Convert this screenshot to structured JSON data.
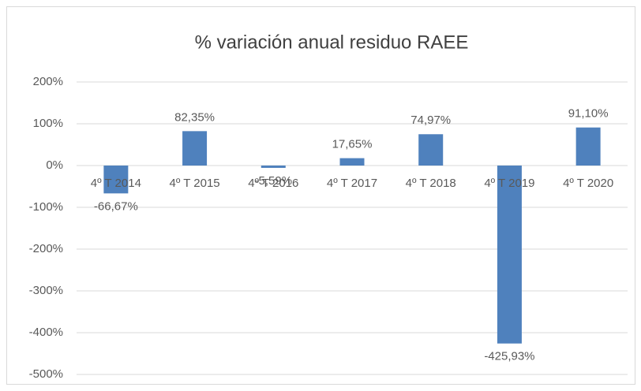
{
  "chart_data": {
    "type": "bar",
    "title": "% variación anual residuo RAEE",
    "categories": [
      "4º T 2014",
      "4º T 2015",
      "4º T 2016",
      "4º T 2017",
      "4º T 2018",
      "4º T 2019",
      "4º T 2020"
    ],
    "values": [
      -66.67,
      82.35,
      -5.59,
      17.65,
      74.97,
      -425.93,
      91.1
    ],
    "value_labels": [
      "-66,67%",
      "82,35%",
      "-5,59%",
      "17,65%",
      "74,97%",
      "-425,93%",
      "91,10%"
    ],
    "color": "#4f81bd",
    "ylim": [
      -500,
      200
    ],
    "yticks": [
      {
        "value": -500,
        "label": "-500%"
      },
      {
        "value": -400,
        "label": "-400%"
      },
      {
        "value": -300,
        "label": "-300%"
      },
      {
        "value": -200,
        "label": "-200%"
      },
      {
        "value": -100,
        "label": "-100%"
      },
      {
        "value": 0,
        "label": "0%"
      },
      {
        "value": 100,
        "label": "100%"
      },
      {
        "value": 200,
        "label": "200%"
      }
    ],
    "grid": true
  }
}
